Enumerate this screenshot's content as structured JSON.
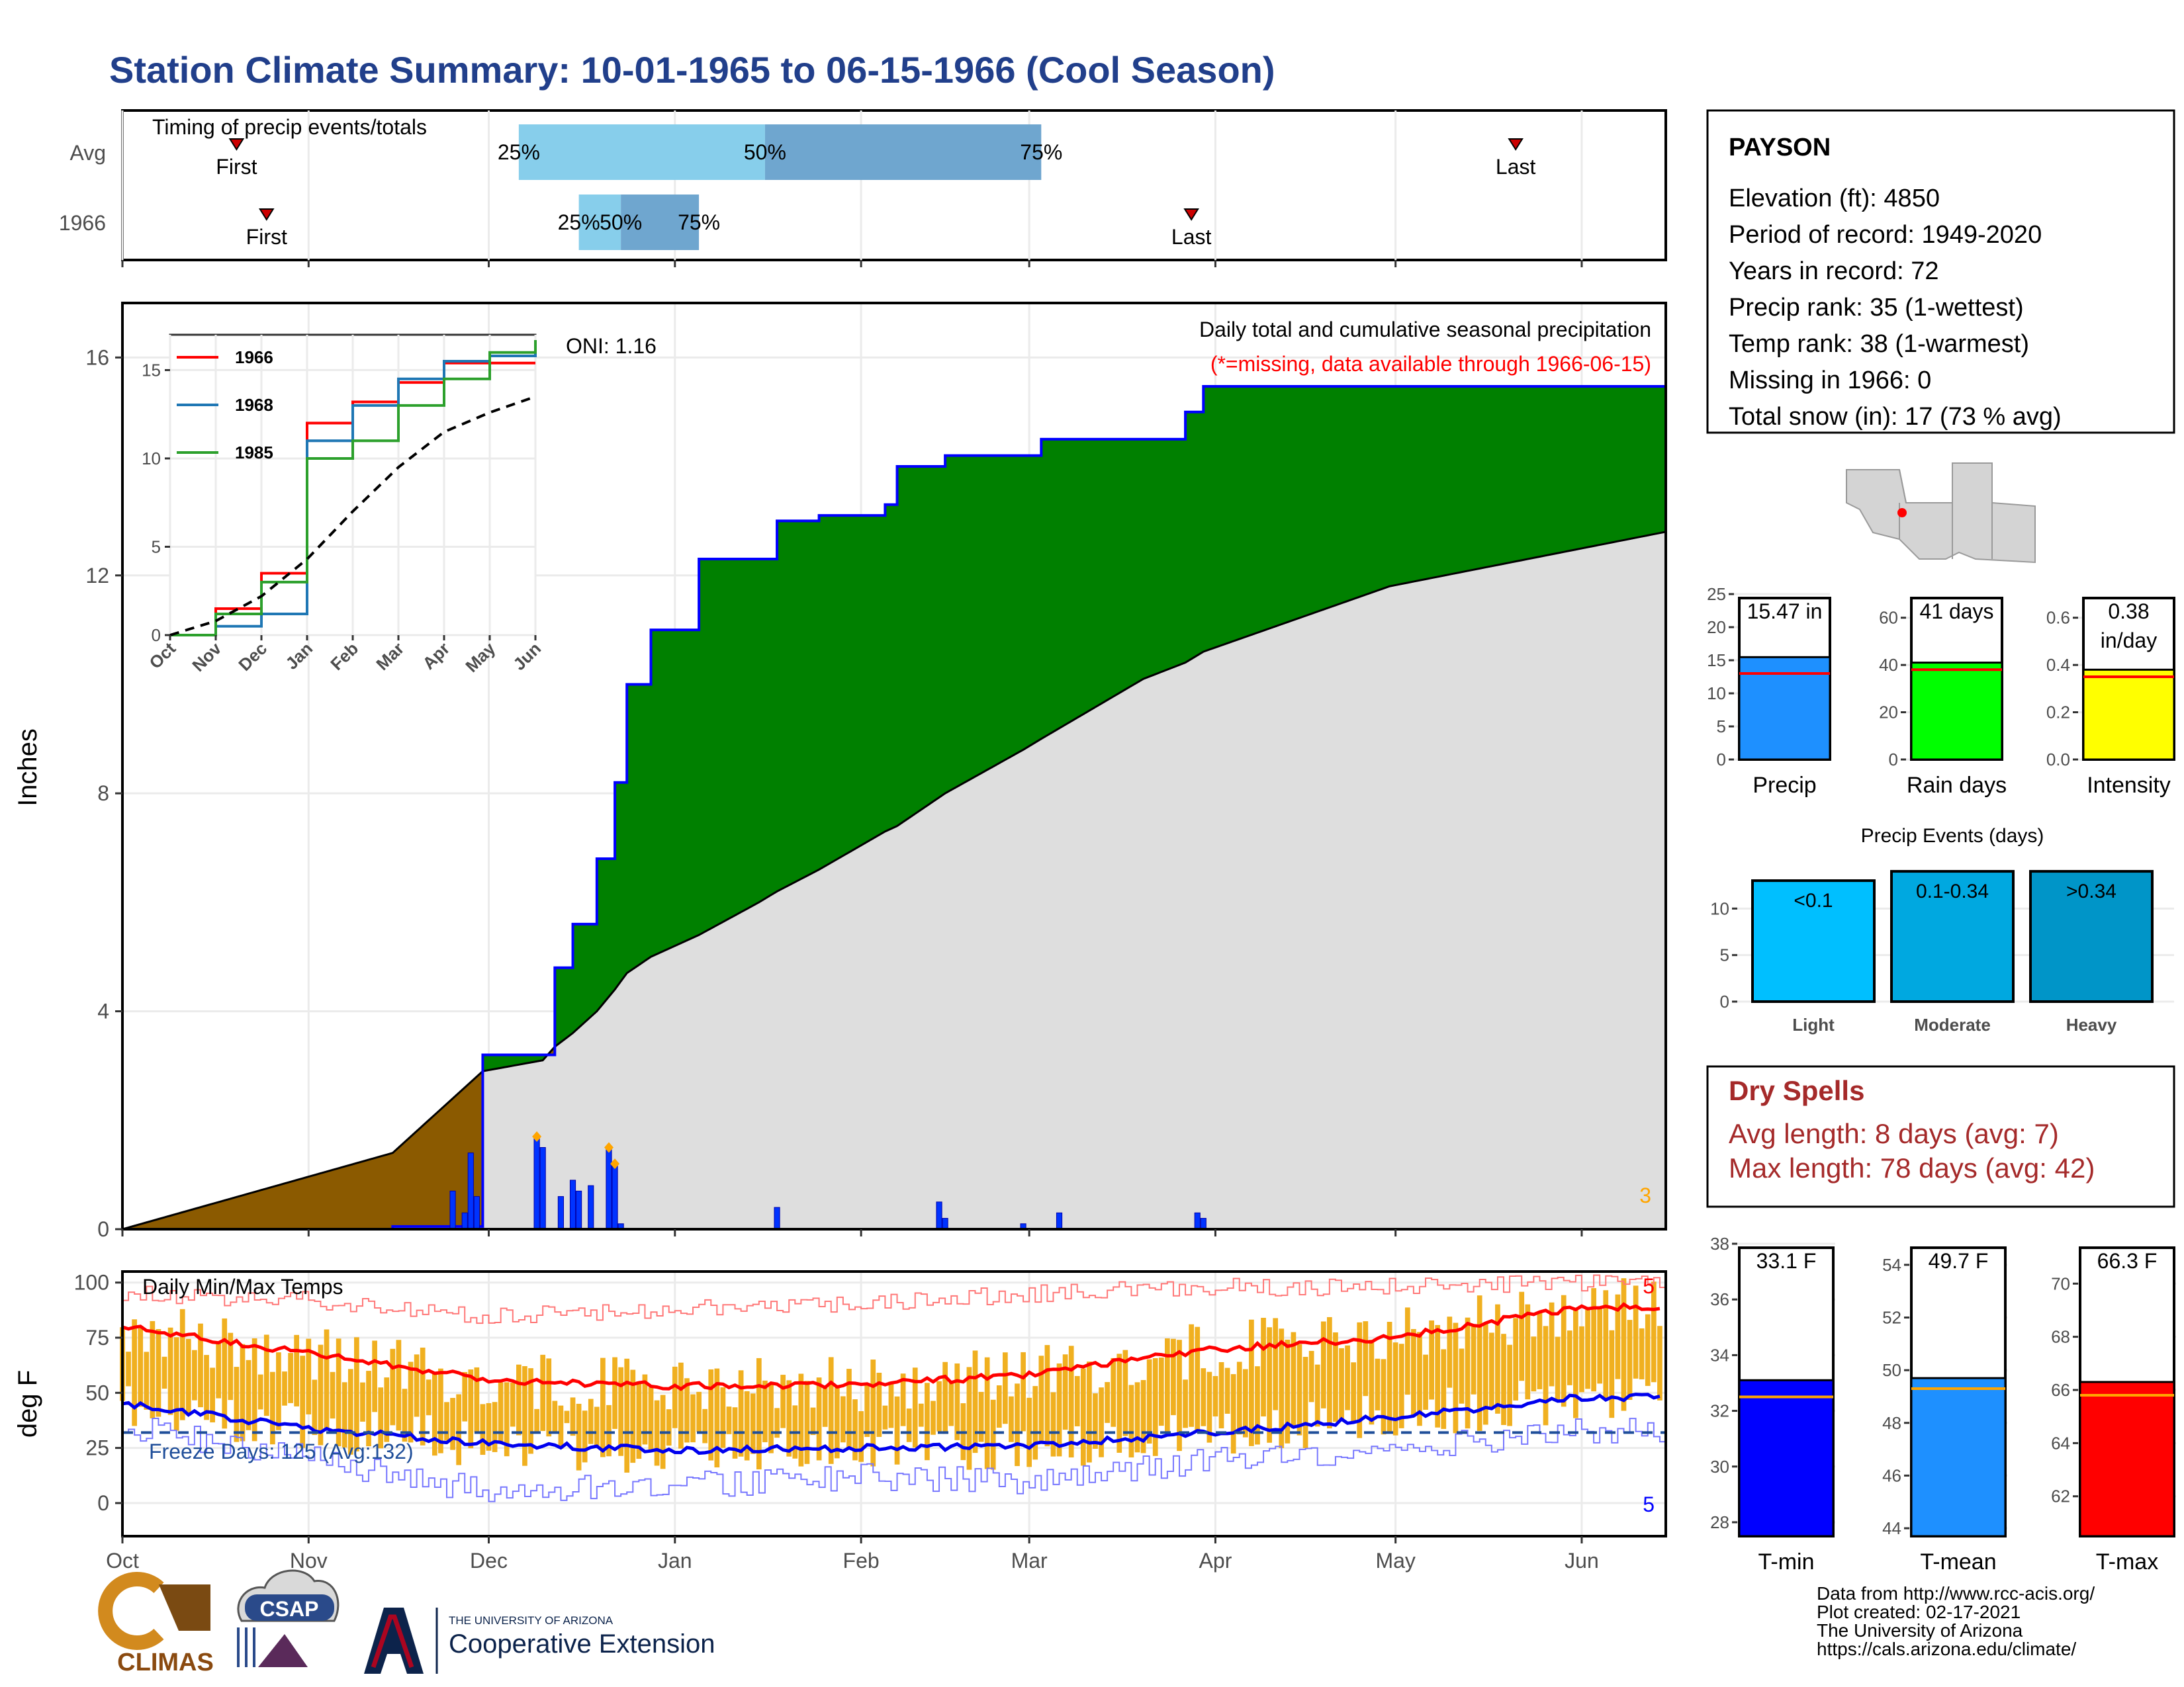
{
  "title": "Station Climate Summary: 10-01-1965 to 06-15-1966 (Cool Season)",
  "colors": {
    "title": "#213f8b",
    "cumulative_fill": "#008000",
    "cumulative_line": "#0000ff",
    "deficit_fill": "#8b5a00",
    "avg_fill": "#dedede",
    "daily_bar": "#0033ff",
    "temp_bar": "#f0b020",
    "max_line": "#ff0000",
    "min_line": "#0000ee",
    "timing_light": "#87ceeb",
    "timing_dark": "#6fa6cf",
    "dry_spell_text": "#a52a2a"
  },
  "timing": {
    "title": "Timing of precip events/totals",
    "rows": [
      {
        "label": "Avg",
        "first_label": "First",
        "last_label": "Last",
        "p25": "25%",
        "p50": "50%",
        "p75": "75%"
      },
      {
        "label": "1966",
        "first_label": "First",
        "last_label": "Last",
        "p25": "25%",
        "p50": "50%",
        "p75": "75%"
      }
    ]
  },
  "precip_panel": {
    "title": "Daily total and cumulative seasonal precipitation",
    "subtitle": "(*=missing, data available through 1966-06-15)",
    "oni": "ONI: 1.16",
    "ylabel": "Inches",
    "corner_count": "3",
    "yticks": [
      "0",
      "4",
      "8",
      "12",
      "16"
    ]
  },
  "inset": {
    "legend": [
      "1966",
      "1968",
      "1985"
    ],
    "colors": [
      "#ff0000",
      "#1f77b4",
      "#2ca02c"
    ],
    "yticks": [
      "0",
      "5",
      "10",
      "15"
    ],
    "xticks": [
      "Oct",
      "Nov",
      "Dec",
      "Jan",
      "Feb",
      "Mar",
      "Apr",
      "May",
      "Jun"
    ]
  },
  "temp_panel": {
    "title": "Daily Min/Max Temps",
    "ylabel": "deg F",
    "freeze_text": "Freeze Days: 125 (Avg:132)",
    "max_count": "5",
    "min_count": "5",
    "yticks": [
      "0",
      "25",
      "50",
      "75",
      "100"
    ]
  },
  "months": [
    "Oct",
    "Nov",
    "Dec",
    "Jan",
    "Feb",
    "Mar",
    "Apr",
    "May",
    "Jun"
  ],
  "station": {
    "name": "PAYSON",
    "lines": [
      "Elevation (ft): 4850",
      "Period of record: 1949-2020",
      "Years in record: 72",
      "Precip rank: 35 (1-wettest)",
      "Temp rank: 38 (1-warmest)",
      "Missing in 1966: 0",
      "Total snow (in): 17 (73 % avg)"
    ]
  },
  "summary_bars": {
    "precip": {
      "label": "Precip",
      "value_text": "15.47 in",
      "yticks": [
        "0",
        "5",
        "10",
        "15",
        "20",
        "25"
      ]
    },
    "rain_days": {
      "label": "Rain days",
      "value_text": "41 days",
      "yticks": [
        "0",
        "20",
        "40",
        "60"
      ]
    },
    "intensity": {
      "label": "Intensity",
      "value_text1": "0.38",
      "value_text2": "in/day",
      "yticks": [
        "0.0",
        "0.2",
        "0.4",
        "0.6"
      ]
    }
  },
  "events": {
    "title": "Precip Events (days)",
    "categories": [
      "Light",
      "Moderate",
      "Heavy"
    ],
    "labels": [
      "<0.1",
      "0.1-0.34",
      ">0.34"
    ],
    "yticks": [
      "0",
      "5",
      "10"
    ]
  },
  "dry_spells": {
    "title": "Dry Spells",
    "line1": "Avg length: 8 days (avg: 7)",
    "line2": "Max length: 78 days (avg: 42)"
  },
  "temp_bars": {
    "tmin": {
      "label": "T-min",
      "value_text": "33.1 F",
      "yticks": [
        "28",
        "30",
        "32",
        "34",
        "36",
        "38"
      ]
    },
    "tmean": {
      "label": "T-mean",
      "value_text": "49.7 F",
      "yticks": [
        "44",
        "46",
        "48",
        "50",
        "52",
        "54"
      ]
    },
    "tmax": {
      "label": "T-max",
      "value_text": "66.3 F",
      "yticks": [
        "62",
        "64",
        "66",
        "68",
        "70"
      ]
    }
  },
  "footer": {
    "lines": [
      "Data from http://www.rcc-acis.org/",
      "Plot created: 02-17-2021",
      "The University of Arizona",
      "https://cals.arizona.edu/climate/"
    ],
    "logo_climas": "CLIMAS",
    "logo_csap": "CSAP",
    "ua_top": "THE UNIVERSITY OF ARIZONA",
    "ua_bottom": "Cooperative Extension"
  },
  "chart_data": [
    {
      "type": "bar",
      "name": "timing",
      "categories": [
        "Avg",
        "1966"
      ],
      "series": [
        {
          "name": "First",
          "values": [
            "10-20",
            "10-25"
          ]
        },
        {
          "name": "25%",
          "values": [
            "12-06",
            "12-16"
          ]
        },
        {
          "name": "50%",
          "values": [
            "01-16",
            "12-23"
          ]
        },
        {
          "name": "75%",
          "values": [
            "03-03",
            "01-05"
          ]
        },
        {
          "name": "Last",
          "values": [
            "05-21",
            "03-28"
          ]
        }
      ]
    },
    {
      "type": "area",
      "name": "precip",
      "x": [
        "10-01",
        "11-15",
        "11-30",
        "12-10",
        "12-12",
        "12-15",
        "12-19",
        "12-22",
        "12-24",
        "12-28",
        "01-05",
        "01-15",
        "01-18",
        "01-25",
        "02-05",
        "02-07",
        "02-15",
        "02-28",
        "03-03",
        "03-20",
        "03-27",
        "03-30",
        "04-30",
        "06-15"
      ],
      "series": [
        {
          "name": "",
          "values": [
            0.0,
            0.05,
            3.2,
            3.2,
            4.8,
            5.6,
            6.8,
            8.2,
            10.0,
            11.0,
            12.3,
            12.3,
            13.0,
            13.1,
            13.3,
            14.0,
            14.2,
            14.2,
            14.5,
            14.5,
            15.0,
            15.47,
            15.47,
            15.47
          ]
        },
        {
          "name": "",
          "values": [
            0.0,
            1.4,
            2.9,
            3.1,
            3.35,
            3.6,
            4.0,
            4.4,
            4.7,
            5.0,
            5.4,
            6.0,
            6.2,
            6.6,
            7.3,
            7.4,
            8.0,
            8.8,
            9.0,
            10.1,
            10.4,
            10.6,
            11.8,
            12.8
          ]
        }
      ],
      "ylim": [
        0,
        17
      ]
    },
    {
      "type": "bar",
      "name": "daily_precip",
      "x": [
        "11-25",
        "11-27",
        "11-28",
        "11-29",
        "12-09",
        "12-10",
        "12-13",
        "12-15",
        "12-16",
        "12-18",
        "12-21",
        "12-22",
        "12-23",
        "01-18",
        "02-14",
        "02-15",
        "02-28",
        "03-06",
        "03-29",
        "03-30"
      ],
      "series": [
        {
          "name": "",
          "values": [
            0.7,
            0.3,
            1.4,
            0.6,
            1.7,
            1.5,
            0.6,
            0.9,
            0.7,
            0.8,
            1.5,
            1.2,
            0.1,
            0.4,
            0.5,
            0.2,
            0.1,
            0.3,
            0.3,
            0.2
          ]
        }
      ]
    },
    {
      "type": "bar",
      "name": "inset_cumulative",
      "categories": [
        "Oct",
        "Nov",
        "Dec",
        "Jan",
        "Feb",
        "Mar",
        "Apr",
        "May",
        "Jun"
      ],
      "series": [
        {
          "name": "1966",
          "values": [
            0,
            1.5,
            3.5,
            12.0,
            13.2,
            14.3,
            15.4,
            15.4,
            15.4
          ]
        },
        {
          "name": "1968",
          "values": [
            0,
            0.5,
            1.2,
            11.0,
            13.0,
            14.5,
            15.5,
            15.8,
            16.5
          ]
        },
        {
          "name": "1985",
          "values": [
            0,
            1.2,
            3.0,
            10.0,
            11.0,
            13.0,
            14.5,
            16.0,
            16.7
          ]
        },
        {
          "name": "",
          "values": [
            0,
            0.8,
            2.2,
            4.3,
            7.0,
            9.5,
            11.5,
            12.6,
            13.5
          ]
        }
      ],
      "ylim": [
        0,
        17
      ]
    },
    {
      "type": "line",
      "name": "temps",
      "x": [
        "Oct",
        "Nov",
        "Dec",
        "Jan",
        "Feb",
        "Mar",
        "Apr",
        "May",
        "Jun"
      ],
      "series": [
        {
          "name": "",
          "values": [
            80,
            68,
            56,
            53,
            54,
            58,
            70,
            75,
            89
          ]
        },
        {
          "name": "",
          "values": [
            45,
            34,
            27,
            24,
            25,
            26,
            32,
            39,
            48
          ]
        },
        {
          "name": "",
          "values": [
            95,
            92,
            85,
            88,
            90,
            95,
            98,
            98,
            100
          ]
        },
        {
          "name": "",
          "values": [
            35,
            20,
            5,
            8,
            12,
            10,
            20,
            25,
            33
          ]
        }
      ],
      "ylim": [
        -15,
        105
      ]
    },
    {
      "type": "bar",
      "name": "season_bars",
      "categories": [
        "Precip",
        "Rain days",
        "Intensity"
      ],
      "series": [
        {
          "name": "",
          "values": [
            15.47,
            41,
            0.38
          ]
        },
        {
          "name": "",
          "values": [
            13.0,
            38,
            0.35
          ]
        }
      ]
    },
    {
      "type": "bar",
      "name": "precip_events",
      "categories": [
        "Light",
        "Moderate",
        "Heavy"
      ],
      "series": [
        {
          "name": "",
          "values": [
            13,
            14,
            14
          ]
        }
      ]
    },
    {
      "type": "bar",
      "name": "temp_bars",
      "categories": [
        "T-min",
        "T-mean",
        "T-max"
      ],
      "series": [
        {
          "name": "",
          "values": [
            33.1,
            49.7,
            66.3
          ]
        },
        {
          "name": "",
          "values": [
            32.5,
            49.3,
            65.8
          ]
        }
      ]
    }
  ]
}
